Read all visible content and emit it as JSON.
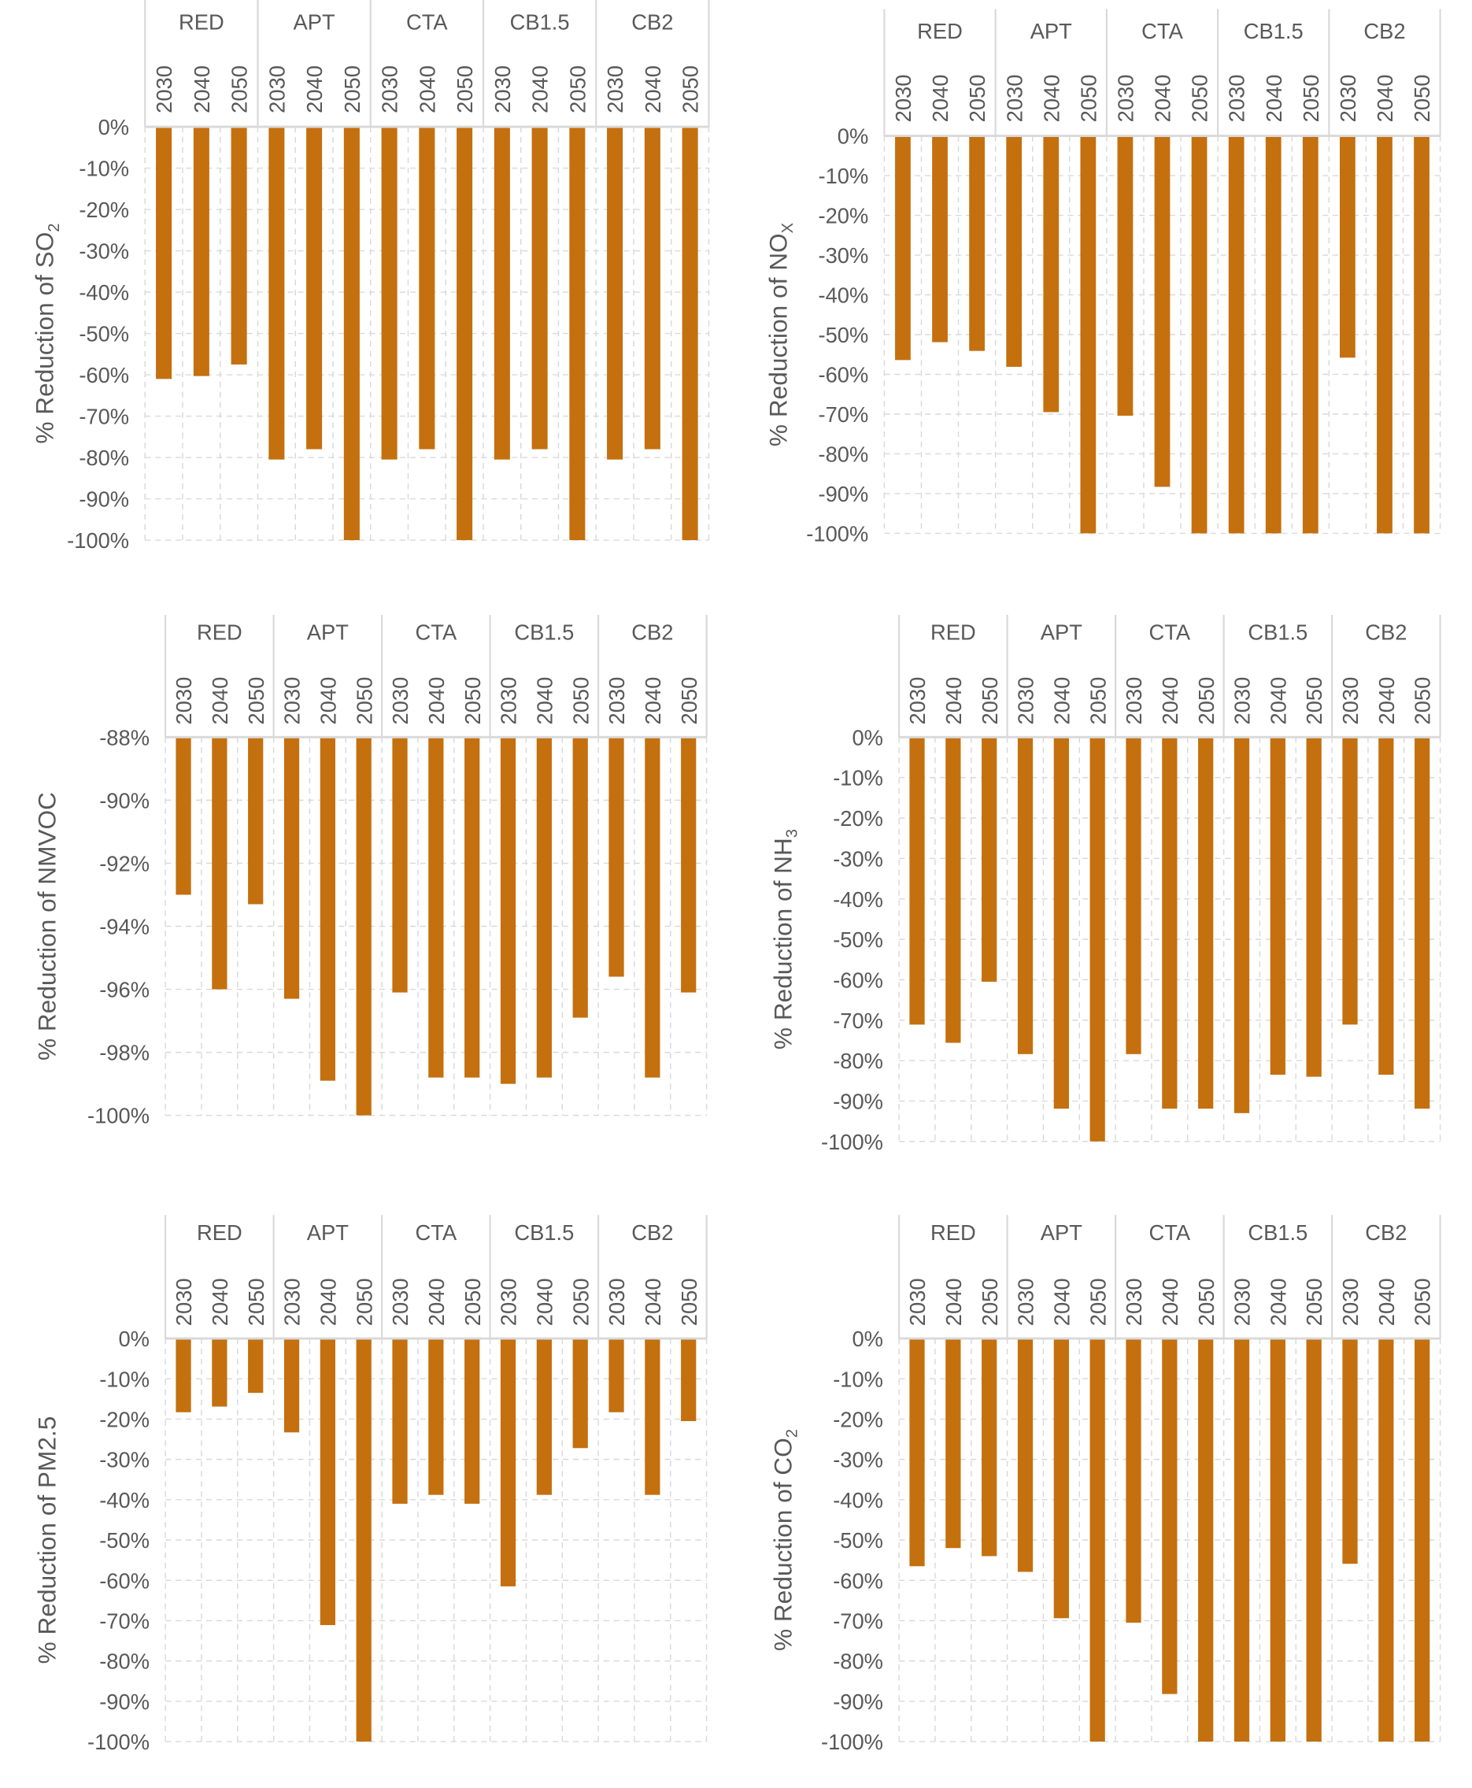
{
  "bar_color": "#C4700F",
  "chart_data": [
    {
      "type": "bar",
      "title": "",
      "ylabel": "% Reduction of SO",
      "ylabel_sub": "2",
      "groups": [
        "RED",
        "APT",
        "CTA",
        "CB1.5",
        "CB2"
      ],
      "years": [
        "2030",
        "2040",
        "2050"
      ],
      "ylim": [
        -100,
        0
      ],
      "ytick_step": 10,
      "yticks": [
        "0%",
        "-10%",
        "-20%",
        "-30%",
        "-40%",
        "-50%",
        "-60%",
        "-70%",
        "-80%",
        "-90%",
        "-100%"
      ],
      "grid": true,
      "values": [
        [
          -61,
          -60.3,
          -57.5
        ],
        [
          -80.5,
          -78,
          -100
        ],
        [
          -80.5,
          -78,
          -100
        ],
        [
          -80.5,
          -78,
          -100
        ],
        [
          -80.5,
          -78,
          -100
        ]
      ]
    },
    {
      "type": "bar",
      "title": "",
      "ylabel": "% Reduction of NO",
      "ylabel_sub": "X",
      "groups": [
        "RED",
        "APT",
        "CTA",
        "CB1.5",
        "CB2"
      ],
      "years": [
        "2030",
        "2040",
        "2050"
      ],
      "ylim": [
        -100,
        0
      ],
      "ytick_step": 10,
      "yticks": [
        "0%",
        "-10%",
        "-20%",
        "-30%",
        "-40%",
        "-50%",
        "-60%",
        "-70%",
        "-80%",
        "-90%",
        "-100%"
      ],
      "grid": true,
      "values": [
        [
          -56.4,
          -51.9,
          -54.1
        ],
        [
          -58.1,
          -69.5,
          -100
        ],
        [
          -70.4,
          -88.3,
          -100
        ],
        [
          -100,
          -100,
          -100
        ],
        [
          -55.8,
          -100,
          -100
        ]
      ]
    },
    {
      "type": "bar",
      "title": "",
      "ylabel": "% Reduction of NMVOC",
      "ylabel_sub": "",
      "groups": [
        "RED",
        "APT",
        "CTA",
        "CB1.5",
        "CB2"
      ],
      "years": [
        "2030",
        "2040",
        "2050"
      ],
      "ylim": [
        -100,
        -88
      ],
      "ytick_step": 2,
      "yticks": [
        "-88%",
        "-90%",
        "-92%",
        "-94%",
        "-96%",
        "-98%",
        "-100%"
      ],
      "grid": true,
      "values": [
        [
          -93.0,
          -96.0,
          -93.3
        ],
        [
          -96.3,
          -98.9,
          -100
        ],
        [
          -96.1,
          -98.8,
          -98.8
        ],
        [
          -99.0,
          -98.8,
          -96.9
        ],
        [
          -95.6,
          -98.8,
          -96.1
        ]
      ]
    },
    {
      "type": "bar",
      "title": "",
      "ylabel": "% Reduction of NH",
      "ylabel_sub": "3",
      "groups": [
        "RED",
        "APT",
        "CTA",
        "CB1.5",
        "CB2"
      ],
      "years": [
        "2030",
        "2040",
        "2050"
      ],
      "ylim": [
        -100,
        0
      ],
      "ytick_step": 10,
      "yticks": [
        "0%",
        "-10%",
        "-20%",
        "-30%",
        "-40%",
        "-50%",
        "-60%",
        "-70%",
        "-80%",
        "-90%",
        "-100%"
      ],
      "grid": true,
      "values": [
        [
          -71.1,
          -75.6,
          -60.5
        ],
        [
          -78.4,
          -91.9,
          -100
        ],
        [
          -78.4,
          -91.9,
          -91.9
        ],
        [
          -93,
          -83.5,
          -84
        ],
        [
          -71.1,
          -83.5,
          -91.9
        ]
      ]
    },
    {
      "type": "bar",
      "title": "",
      "ylabel": "% Reduction of PM2.5",
      "ylabel_sub": "",
      "groups": [
        "RED",
        "APT",
        "CTA",
        "CB1.5",
        "CB2"
      ],
      "years": [
        "2030",
        "2040",
        "2050"
      ],
      "ylim": [
        -100,
        0
      ],
      "ytick_step": 10,
      "yticks": [
        "0%",
        "-10%",
        "-20%",
        "-30%",
        "-40%",
        "-50%",
        "-60%",
        "-70%",
        "-80%",
        "-90%",
        "-100%"
      ],
      "grid": true,
      "values": [
        [
          -18.3,
          -16.9,
          -13.5
        ],
        [
          -23.3,
          -71.1,
          -100
        ],
        [
          -41,
          -38.8,
          -41
        ],
        [
          -61.5,
          -38.8,
          -27.2
        ],
        [
          -18.3,
          -38.8,
          -20.5
        ]
      ]
    },
    {
      "type": "bar",
      "title": "",
      "ylabel": "% Reduction of CO",
      "ylabel_sub": "2",
      "groups": [
        "RED",
        "APT",
        "CTA",
        "CB1.5",
        "CB2"
      ],
      "years": [
        "2030",
        "2040",
        "2050"
      ],
      "ylim": [
        -100,
        0
      ],
      "ytick_step": 10,
      "yticks": [
        "0%",
        "-10%",
        "-20%",
        "-30%",
        "-40%",
        "-50%",
        "-60%",
        "-70%",
        "-80%",
        "-90%",
        "-100%"
      ],
      "grid": true,
      "values": [
        [
          -56.5,
          -52,
          -54
        ],
        [
          -57.9,
          -69.4,
          -100
        ],
        [
          -70.5,
          -88.2,
          -100
        ],
        [
          -100,
          -100,
          -100
        ],
        [
          -55.9,
          -100,
          -100
        ]
      ]
    }
  ]
}
